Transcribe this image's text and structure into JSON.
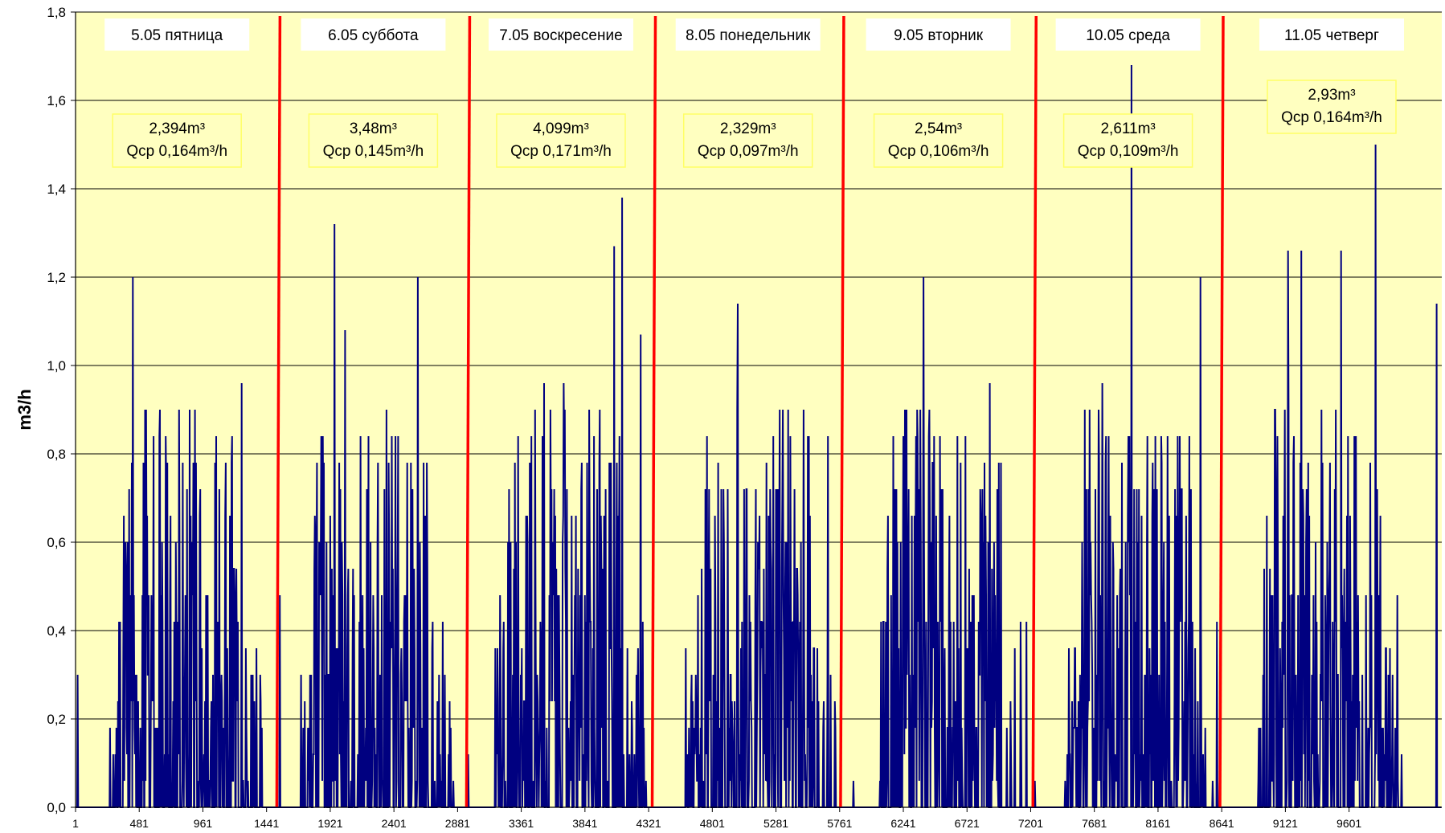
{
  "chart_data": {
    "type": "line",
    "title": "",
    "xlabel": "",
    "ylabel": "m3/h",
    "ylim": [
      0,
      1.8
    ],
    "xlim": [
      1,
      10300
    ],
    "y_ticks": [
      "0,0",
      "0,2",
      "0,4",
      "0,6",
      "0,8",
      "1,0",
      "1,2",
      "1,4",
      "1,6",
      "1,8"
    ],
    "x_ticks": [
      "1",
      "481",
      "961",
      "1441",
      "1921",
      "2401",
      "2881",
      "3361",
      "3841",
      "4321",
      "4801",
      "5281",
      "5761",
      "6241",
      "6721",
      "7201",
      "7681",
      "8161",
      "8641",
      "9121",
      "9601"
    ],
    "grid": "horizontal",
    "background_color": "#FFFFC0",
    "series": [
      {
        "color": "#000080",
        "peaks": [
          {
            "x": 15,
            "y": 0.3
          },
          {
            "x": 430,
            "y": 1.2
          },
          {
            "x": 780,
            "y": 0.9
          },
          {
            "x": 1250,
            "y": 0.96
          },
          {
            "x": 1540,
            "y": 0.48
          },
          {
            "x": 1950,
            "y": 1.32
          },
          {
            "x": 2030,
            "y": 1.08
          },
          {
            "x": 2580,
            "y": 1.2
          },
          {
            "x": 2960,
            "y": 0.12
          },
          {
            "x": 3530,
            "y": 0.96
          },
          {
            "x": 3680,
            "y": 0.96
          },
          {
            "x": 4060,
            "y": 1.27
          },
          {
            "x": 4120,
            "y": 1.38
          },
          {
            "x": 4260,
            "y": 1.07
          },
          {
            "x": 4990,
            "y": 1.14
          },
          {
            "x": 5260,
            "y": 0.84
          },
          {
            "x": 5670,
            "y": 0.84
          },
          {
            "x": 6390,
            "y": 1.2
          },
          {
            "x": 6890,
            "y": 0.96
          },
          {
            "x": 7230,
            "y": 0.06
          },
          {
            "x": 7740,
            "y": 0.96
          },
          {
            "x": 7960,
            "y": 1.68
          },
          {
            "x": 8480,
            "y": 1.2
          },
          {
            "x": 9140,
            "y": 1.26
          },
          {
            "x": 9240,
            "y": 1.26
          },
          {
            "x": 9540,
            "y": 1.26
          },
          {
            "x": 9800,
            "y": 1.5
          },
          {
            "x": 10260,
            "y": 1.14
          }
        ]
      }
    ],
    "day_dividers": [
      1530,
      2960,
      4360,
      5780,
      7230,
      8640
    ],
    "day_labels": [
      "5.05 пятница",
      "6.05 суббота",
      "7.05 воскресение",
      "8.05 понедельник",
      "9.05 вторник",
      "10.05 среда",
      "11.05 четверг"
    ],
    "annotations": [
      {
        "line1": "2,394m³",
        "line2": "Qср 0,164m³/h"
      },
      {
        "line1": "3,48m³",
        "line2": "Qср 0,145m³/h"
      },
      {
        "line1": "4,099m³",
        "line2": "Qср 0,171m³/h"
      },
      {
        "line1": "2,329m³",
        "line2": "Qср 0,097m³/h"
      },
      {
        "line1": "2,54m³",
        "line2": "Qср 0,106m³/h"
      },
      {
        "line1": "2,611m³",
        "line2": "Qср 0,109m³/h"
      },
      {
        "line1": "2,93m³",
        "line2": "Qср 0,164m³/h"
      }
    ],
    "divider_color": "#FF0000",
    "annotation_border_color": "#FFFF66"
  }
}
